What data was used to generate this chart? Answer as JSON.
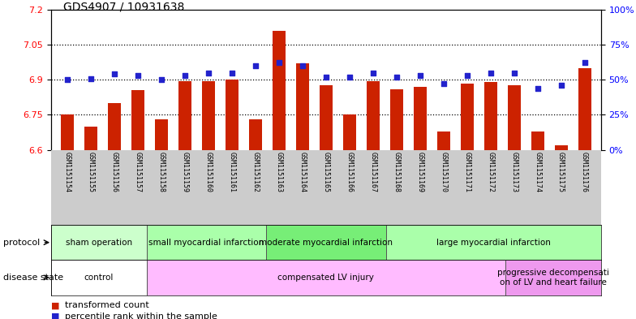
{
  "title": "GDS4907 / 10931638",
  "samples": [
    "GSM1151154",
    "GSM1151155",
    "GSM1151156",
    "GSM1151157",
    "GSM1151158",
    "GSM1151159",
    "GSM1151160",
    "GSM1151161",
    "GSM1151162",
    "GSM1151163",
    "GSM1151164",
    "GSM1151165",
    "GSM1151166",
    "GSM1151167",
    "GSM1151168",
    "GSM1151169",
    "GSM1151170",
    "GSM1151171",
    "GSM1151172",
    "GSM1151173",
    "GSM1151174",
    "GSM1151175",
    "GSM1151176"
  ],
  "transformed_count": [
    6.75,
    6.7,
    6.8,
    6.855,
    6.73,
    6.895,
    6.895,
    6.9,
    6.73,
    7.11,
    6.97,
    6.875,
    6.75,
    6.895,
    6.86,
    6.87,
    6.68,
    6.885,
    6.89,
    6.875,
    6.68,
    6.62,
    6.95
  ],
  "percentile_rank": [
    50,
    51,
    54,
    53,
    50,
    53,
    55,
    55,
    60,
    62,
    60,
    52,
    52,
    55,
    52,
    53,
    47,
    53,
    55,
    55,
    44,
    46,
    62
  ],
  "ylim_left": [
    6.6,
    7.2
  ],
  "ylim_right": [
    0,
    100
  ],
  "yticks_left": [
    6.6,
    6.75,
    6.9,
    7.05,
    7.2
  ],
  "ytick_labels_left": [
    "6.6",
    "6.75",
    "6.9",
    "7.05",
    "7.2"
  ],
  "yticks_right": [
    0,
    25,
    50,
    75,
    100
  ],
  "ytick_labels_right": [
    "0%",
    "25%",
    "50%",
    "75%",
    "100%"
  ],
  "hlines": [
    6.75,
    6.9,
    7.05
  ],
  "bar_color": "#cc2200",
  "dot_color": "#2222cc",
  "bar_width": 0.55,
  "prot_extents": [
    {
      "start": 0,
      "end": 4,
      "label": "sham operation",
      "color": "#ccffcc"
    },
    {
      "start": 4,
      "end": 9,
      "label": "small myocardial infarction",
      "color": "#aaffaa"
    },
    {
      "start": 9,
      "end": 14,
      "label": "moderate myocardial infarction",
      "color": "#77ee77"
    },
    {
      "start": 14,
      "end": 23,
      "label": "large myocardial infarction",
      "color": "#aaffaa"
    }
  ],
  "dis_extents": [
    {
      "start": 0,
      "end": 4,
      "label": "control",
      "color": "#ffffff"
    },
    {
      "start": 4,
      "end": 19,
      "label": "compensated LV injury",
      "color": "#ffbbff"
    },
    {
      "start": 19,
      "end": 23,
      "label": "progressive decompensati\non of LV and heart failure",
      "color": "#ee99ee"
    }
  ],
  "bg_color": "#ffffff",
  "label_bg_color": "#cccccc",
  "title_fontsize": 10,
  "bar_fontsize": 7,
  "tick_fontsize": 8,
  "annot_fontsize": 8
}
